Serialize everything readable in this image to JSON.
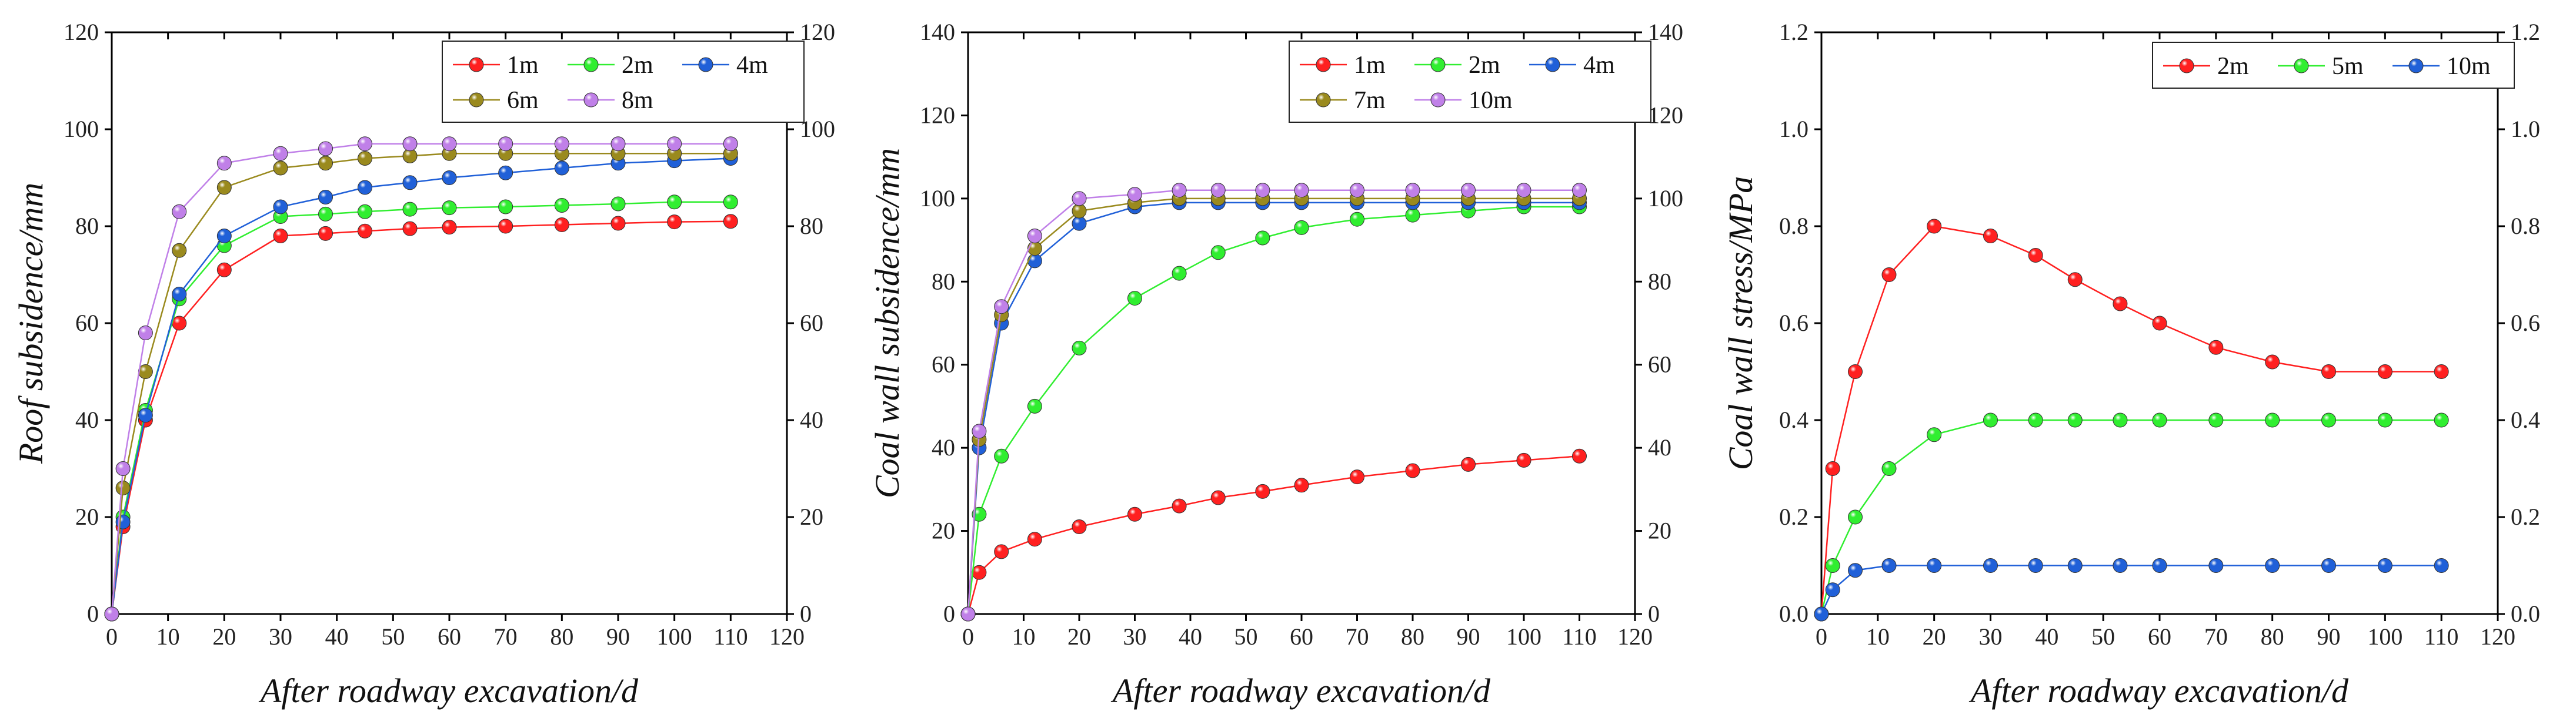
{
  "chart_data": [
    {
      "type": "line",
      "title": "",
      "xlabel": "After roadway excavation/d",
      "ylabel": "Roof subsidence/mm",
      "xlim": [
        0,
        120
      ],
      "ylim": [
        0,
        120
      ],
      "xticks": [
        0,
        10,
        20,
        30,
        40,
        50,
        60,
        70,
        80,
        90,
        100,
        110,
        120
      ],
      "yticks": [
        0,
        20,
        40,
        60,
        80,
        100,
        120
      ],
      "grid": false,
      "legend_position": "top-right",
      "legend_columns": 3,
      "x": [
        0,
        2,
        6,
        12,
        20,
        30,
        38,
        45,
        53,
        60,
        70,
        80,
        90,
        100,
        110
      ],
      "series": [
        {
          "name": "1m",
          "color": "#ff2020",
          "values": [
            0,
            18,
            40,
            60,
            71,
            78,
            78.5,
            79,
            79.5,
            79.8,
            80,
            80.3,
            80.6,
            80.9,
            81
          ]
        },
        {
          "name": "2m",
          "color": "#30ee30",
          "values": [
            0,
            20,
            42,
            65,
            76,
            82,
            82.5,
            83,
            83.5,
            83.8,
            84,
            84.3,
            84.6,
            85,
            85
          ]
        },
        {
          "name": "4m",
          "color": "#2060d8",
          "values": [
            0,
            19,
            41,
            66,
            78,
            84,
            86,
            88,
            89,
            90,
            91,
            92,
            93,
            93.5,
            94
          ]
        },
        {
          "name": "6m",
          "color": "#9a8a1e",
          "values": [
            0,
            26,
            50,
            75,
            88,
            92,
            93,
            94,
            94.5,
            95,
            95,
            95,
            95,
            95,
            95
          ]
        },
        {
          "name": "8m",
          "color": "#c080e8",
          "values": [
            0,
            30,
            58,
            83,
            93,
            95,
            96,
            97,
            97,
            97,
            97,
            97,
            97,
            97,
            97
          ]
        }
      ]
    },
    {
      "type": "line",
      "title": "",
      "xlabel": "After roadway excavation/d",
      "ylabel": "Coal wall subsidence/mm",
      "xlim": [
        0,
        120
      ],
      "ylim": [
        0,
        140
      ],
      "xticks": [
        0,
        10,
        20,
        30,
        40,
        50,
        60,
        70,
        80,
        90,
        100,
        110,
        120
      ],
      "yticks": [
        0,
        20,
        40,
        60,
        80,
        100,
        120,
        140
      ],
      "grid": false,
      "legend_position": "top-right",
      "legend_columns": 3,
      "x": [
        0,
        2,
        6,
        12,
        20,
        30,
        38,
        45,
        53,
        60,
        70,
        80,
        90,
        100,
        110
      ],
      "series": [
        {
          "name": "1m",
          "color": "#ff2020",
          "values": [
            0,
            10,
            15,
            18,
            21,
            24,
            26,
            28,
            29.5,
            31,
            33,
            34.5,
            36,
            37,
            38
          ]
        },
        {
          "name": "2m",
          "color": "#30ee30",
          "values": [
            0,
            24,
            38,
            50,
            64,
            76,
            82,
            87,
            90.5,
            93,
            95,
            96,
            97,
            98,
            98
          ]
        },
        {
          "name": "4m",
          "color": "#2060d8",
          "values": [
            0,
            40,
            70,
            85,
            94,
            98,
            99,
            99,
            99,
            99,
            99,
            99,
            99,
            99,
            99
          ]
        },
        {
          "name": "7m",
          "color": "#9a8a1e",
          "values": [
            0,
            42,
            72,
            88,
            97,
            99,
            100,
            100,
            100,
            100,
            100,
            100,
            100,
            100,
            100
          ]
        },
        {
          "name": "10m",
          "color": "#c080e8",
          "values": [
            0,
            44,
            74,
            91,
            100,
            101,
            102,
            102,
            102,
            102,
            102,
            102,
            102,
            102,
            102
          ]
        }
      ]
    },
    {
      "type": "line",
      "title": "",
      "xlabel": "After roadway excavation/d",
      "ylabel": "Coal wall stress/MPa",
      "xlim": [
        0,
        120
      ],
      "ylim": [
        0,
        1.2
      ],
      "xticks": [
        0,
        10,
        20,
        30,
        40,
        50,
        60,
        70,
        80,
        90,
        100,
        110,
        120
      ],
      "yticks": [
        0.0,
        0.2,
        0.4,
        0.6,
        0.8,
        1.0,
        1.2
      ],
      "ytick_labels": [
        "0.0",
        "0.2",
        "0.4",
        "0.6",
        "0.8",
        "1.0",
        "1.2"
      ],
      "grid": false,
      "legend_position": "top-right",
      "legend_columns": 3,
      "x": [
        0,
        2,
        6,
        12,
        20,
        30,
        38,
        45,
        53,
        60,
        70,
        80,
        90,
        100,
        110
      ],
      "series": [
        {
          "name": "2m",
          "color": "#ff2020",
          "values": [
            0,
            0.3,
            0.5,
            0.7,
            0.8,
            0.78,
            0.74,
            0.69,
            0.64,
            0.6,
            0.55,
            0.52,
            0.5,
            0.5,
            0.5
          ]
        },
        {
          "name": "5m",
          "color": "#30ee30",
          "values": [
            0,
            0.1,
            0.2,
            0.3,
            0.37,
            0.4,
            0.4,
            0.4,
            0.4,
            0.4,
            0.4,
            0.4,
            0.4,
            0.4,
            0.4
          ]
        },
        {
          "name": "10m",
          "color": "#2060d8",
          "values": [
            0,
            0.05,
            0.09,
            0.1,
            0.1,
            0.1,
            0.1,
            0.1,
            0.1,
            0.1,
            0.1,
            0.1,
            0.1,
            0.1,
            0.1
          ]
        }
      ]
    }
  ]
}
